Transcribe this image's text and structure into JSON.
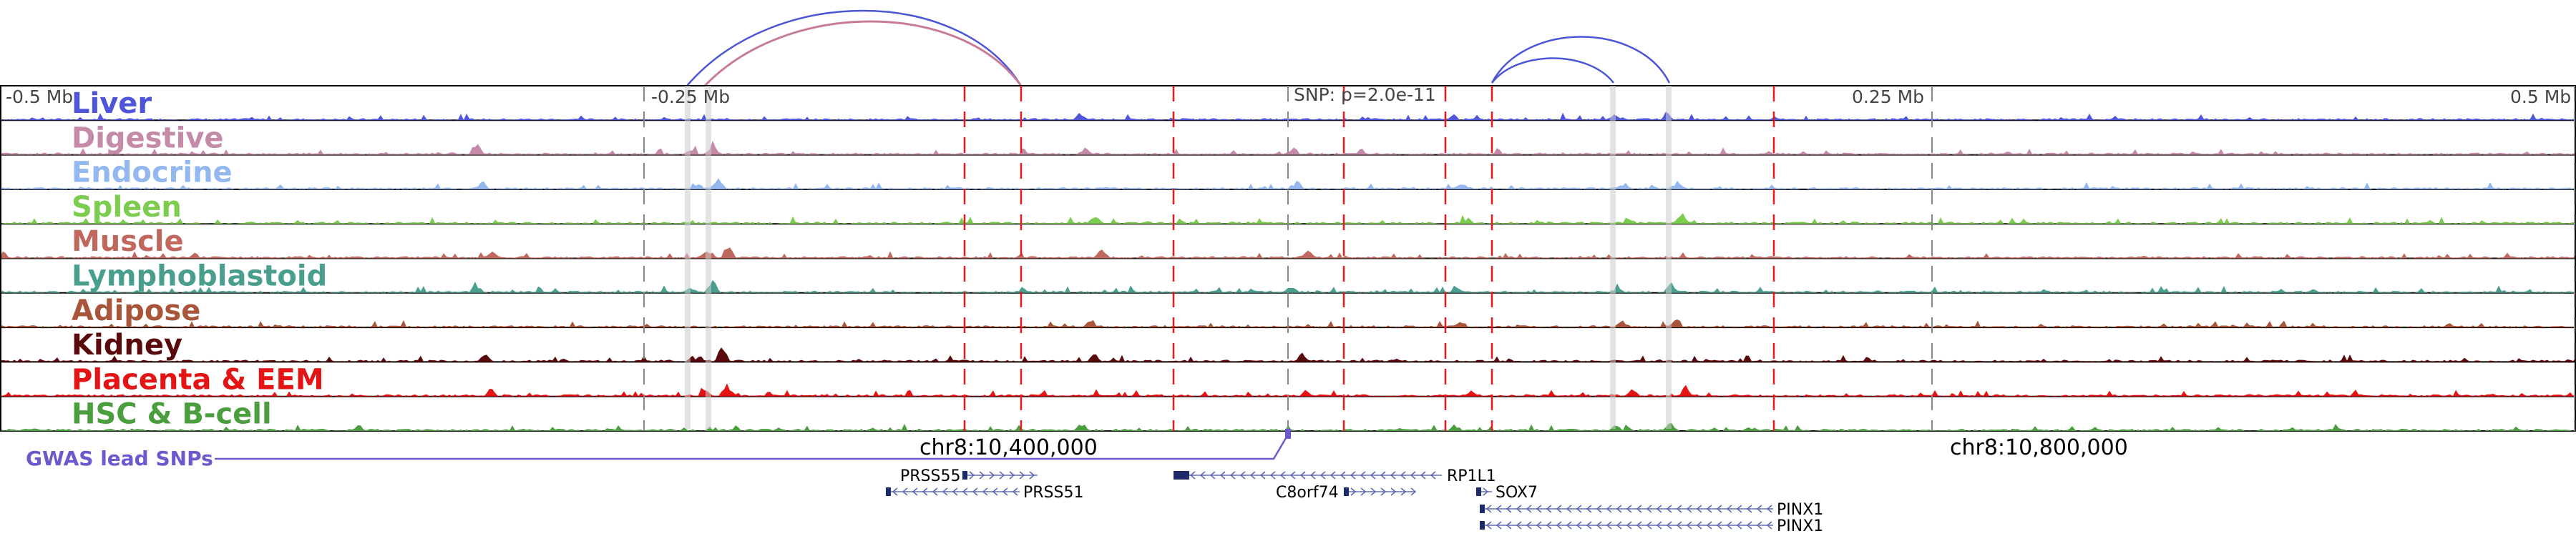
{
  "scale": {
    "left": "-0.5 Mb",
    "neg_quarter": "-0.25 Mb",
    "snp": "SNP: p=2.0e-11",
    "pos_quarter": "0.25 Mb",
    "right": "0.5 Mb"
  },
  "coords": {
    "left": "chr8:10,400,000",
    "right": "chr8:10,800,000"
  },
  "gwas_label": "GWAS lead SNPs",
  "tracks": [
    {
      "name": "Liver",
      "color": "#4f55d8"
    },
    {
      "name": "Digestive",
      "color": "#c48aa8"
    },
    {
      "name": "Endocrine",
      "color": "#92b8ef"
    },
    {
      "name": "Spleen",
      "color": "#7ccc4e"
    },
    {
      "name": "Muscle",
      "color": "#c0675e"
    },
    {
      "name": "Lymphoblastoid",
      "color": "#4a9e8e"
    },
    {
      "name": "Adipose",
      "color": "#a9553a"
    },
    {
      "name": "Kidney",
      "color": "#5a0a0a"
    },
    {
      "name": "Placenta & EEM",
      "color": "#e41414"
    },
    {
      "name": "HSC & B-cell",
      "color": "#4a9e3e"
    }
  ],
  "genes": [
    {
      "name": "PRSS55"
    },
    {
      "name": "PRSS51"
    },
    {
      "name": "RP1L1"
    },
    {
      "name": "C8orf74"
    },
    {
      "name": "SOX7"
    },
    {
      "name": "PINX1"
    },
    {
      "name": "PINX1"
    }
  ],
  "colors": {
    "loop_blue": "#4b56d6",
    "loop_pink": "#c87a9a",
    "red_dash": "#e41a1c",
    "gray_dash": "#888888",
    "gene_body": "#1f2a6b",
    "gwas": "#6a5acd"
  }
}
